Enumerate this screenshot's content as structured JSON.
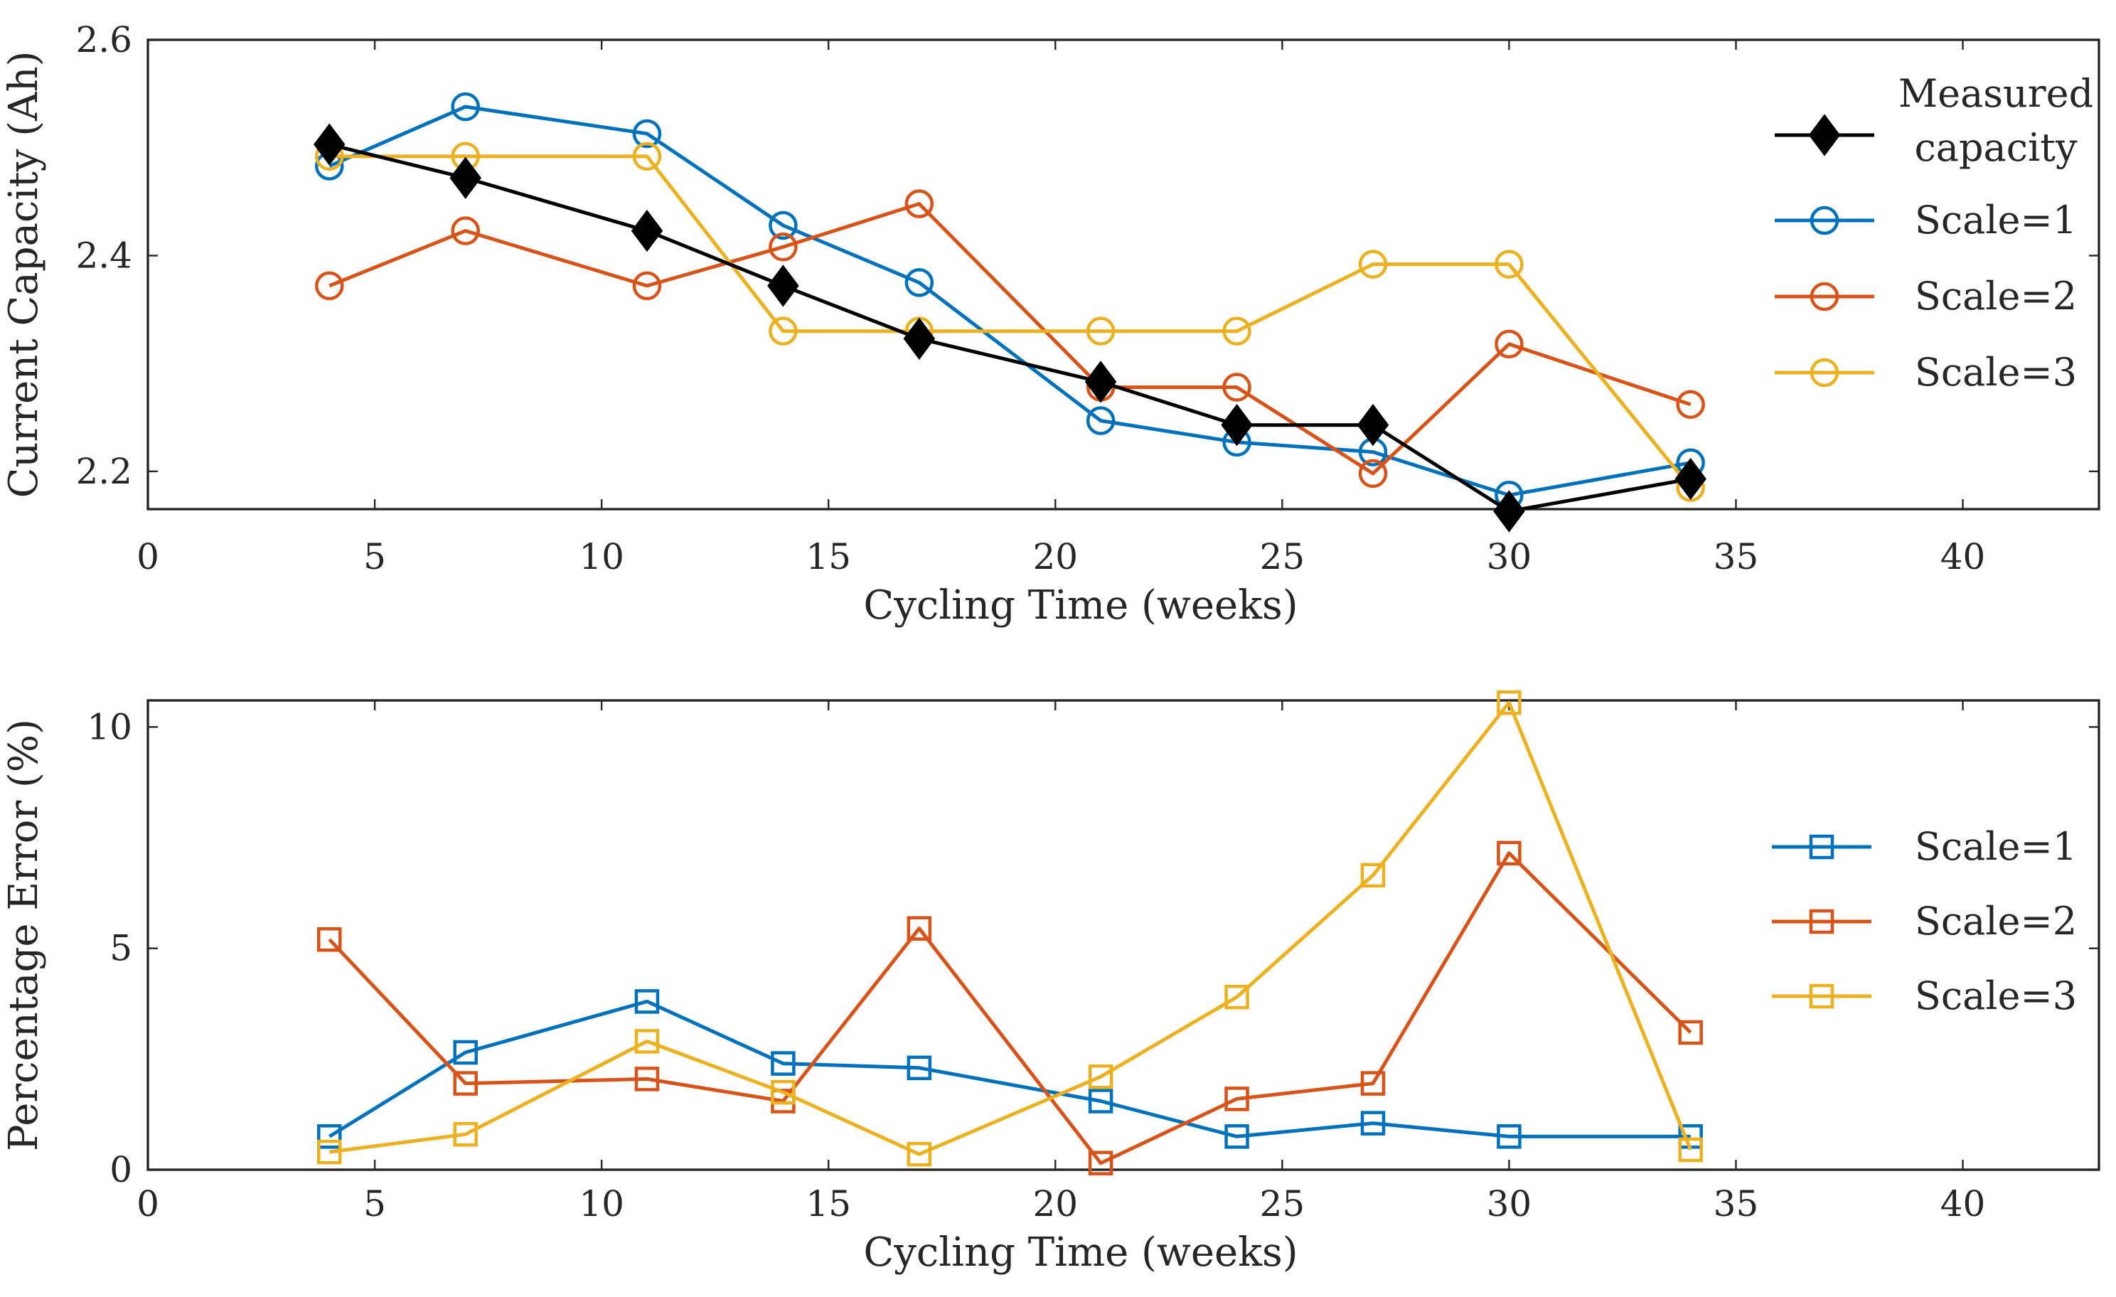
{
  "chart_data": [
    {
      "type": "line",
      "id": "capacity",
      "xlabel": "Cycling Time (weeks)",
      "ylabel": "Current Capacity (Ah)",
      "xlim": [
        0,
        43
      ],
      "ylim": [
        2.165,
        2.6
      ],
      "xticks": [
        0,
        5,
        10,
        15,
        20,
        25,
        30,
        35,
        40
      ],
      "yticks": [
        2.2,
        2.4,
        2.6
      ],
      "ytick_labels": [
        "2.2",
        "2.4",
        "2.6"
      ],
      "x": [
        4,
        7,
        11,
        14,
        17,
        21,
        24,
        27,
        30,
        34
      ],
      "legend_position": "top-right",
      "series": [
        {
          "name": "Measured",
          "name_line2": "capacity",
          "color": "#000000",
          "marker": "diamond",
          "values": [
            2.503,
            2.472,
            2.423,
            2.372,
            2.323,
            2.283,
            2.243,
            2.243,
            2.163,
            2.193
          ]
        },
        {
          "name": "Scale=1",
          "color": "#0072BD",
          "marker": "circle",
          "values": [
            2.483,
            2.538,
            2.513,
            2.428,
            2.375,
            2.247,
            2.227,
            2.218,
            2.178,
            2.208
          ]
        },
        {
          "name": "Scale=2",
          "color": "#D95319",
          "marker": "circle",
          "values": [
            2.372,
            2.423,
            2.372,
            2.408,
            2.448,
            2.278,
            2.278,
            2.198,
            2.318,
            2.262
          ]
        },
        {
          "name": "Scale=3",
          "color": "#EDB120",
          "marker": "circle",
          "values": [
            2.492,
            2.492,
            2.492,
            2.33,
            2.33,
            2.33,
            2.33,
            2.392,
            2.392,
            2.185
          ]
        }
      ]
    },
    {
      "type": "line",
      "id": "error",
      "xlabel": "Cycling Time (weeks)",
      "ylabel": "Percentage Error (%)",
      "xlim": [
        0,
        43
      ],
      "ylim": [
        0,
        10.6
      ],
      "xticks": [
        0,
        5,
        10,
        15,
        20,
        25,
        30,
        35,
        40
      ],
      "yticks": [
        0,
        5,
        10
      ],
      "ytick_labels": [
        "0",
        "5",
        "10"
      ],
      "x": [
        4,
        7,
        11,
        14,
        17,
        21,
        24,
        27,
        30,
        34
      ],
      "legend_position": "right",
      "series": [
        {
          "name": "Scale=1",
          "color": "#0072BD",
          "marker": "square",
          "values": [
            0.75,
            2.65,
            3.8,
            2.4,
            2.3,
            1.55,
            0.75,
            1.05,
            0.75,
            0.75
          ]
        },
        {
          "name": "Scale=2",
          "color": "#D95319",
          "marker": "square",
          "values": [
            5.2,
            1.95,
            2.05,
            1.55,
            5.45,
            0.15,
            1.6,
            1.95,
            7.15,
            3.1
          ]
        },
        {
          "name": "Scale=3",
          "color": "#EDB120",
          "marker": "square",
          "values": [
            0.4,
            0.8,
            2.9,
            1.75,
            0.35,
            2.1,
            3.9,
            6.65,
            10.55,
            0.45
          ]
        }
      ]
    }
  ]
}
